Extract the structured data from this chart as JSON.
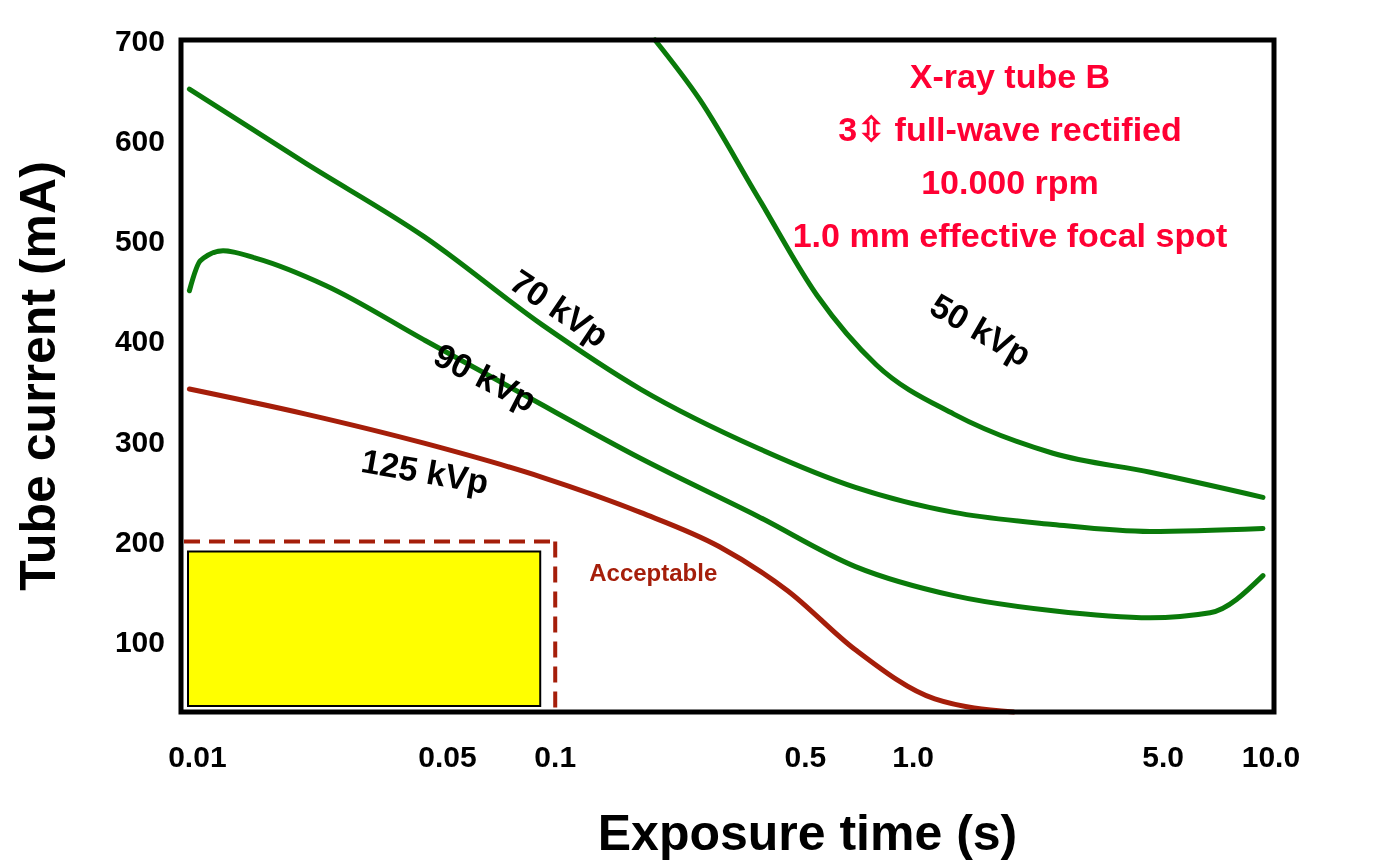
{
  "chart_data": {
    "type": "line",
    "xlabel": "Exposure time (s)",
    "ylabel": "Tube current (mA)",
    "log": "x",
    "xlim": [
      0.009,
      10.2
    ],
    "ylim": [
      30,
      700
    ],
    "xticks": [
      0.01,
      0.05,
      0.1,
      0.5,
      {
        "value": 1,
        "label": "1.0"
      },
      {
        "value": 5,
        "label": "5.0"
      },
      {
        "value": 10,
        "label": "10.0"
      }
    ],
    "yticks": [
      100,
      200,
      300,
      400,
      500,
      600,
      700
    ],
    "grid": false,
    "marker": "none",
    "line_style": "solid",
    "ref_lines": [
      {
        "axis": "x",
        "value": 0.1,
        "color": "#a51e0a",
        "line_style": "dashed"
      },
      {
        "axis": "y",
        "value": 200,
        "color": "#a51e0a",
        "line_style": "dashed"
      }
    ],
    "series": [
      {
        "name": "50 kVp",
        "color": "#0a7a0a",
        "x": [
          0.19,
          0.253,
          0.369,
          0.54,
          0.79,
          1.3,
          2.46,
          4.6,
          9.5
        ],
        "values": [
          700,
          641,
          543,
          445,
          376,
          327,
          288,
          269,
          244
        ]
      },
      {
        "name": "70 kVp",
        "color": "#0a7a0a",
        "x": [
          0.0095,
          0.0201,
          0.043,
          0.092,
          0.173,
          0.369,
          0.69,
          1.3,
          2.46,
          4.6,
          9.5
        ],
        "values": [
          651,
          577,
          504,
          416,
          352,
          293,
          254,
          229,
          217,
          210,
          213
        ]
      },
      {
        "name": "90 kVp",
        "color": "#0a7a0a",
        "x": [
          0.0095,
          0.0102,
          0.0118,
          0.0147,
          0.0229,
          0.043,
          0.081,
          0.173,
          0.369,
          0.69,
          1.3,
          2.46,
          4.6,
          6.76,
          9.5
        ],
        "values": [
          450,
          480,
          490,
          482,
          455,
          401,
          347,
          283,
          225,
          175,
          146,
          131,
          124,
          129,
          166
        ]
      },
      {
        "name": "125 kVp",
        "color": "#a51e0a",
        "x": [
          0.0095,
          0.0201,
          0.043,
          0.092,
          0.173,
          0.287,
          0.446,
          0.69,
          1.15,
          1.91
        ],
        "values": [
          352,
          327,
          298,
          264,
          229,
          195,
          151,
          92,
          43,
          30
        ]
      }
    ],
    "annotations": [
      "X-ray tube B",
      "3⇳ full-wave rectified",
      "10.000 rpm",
      "1.0 mm effective focal spot",
      "Acceptable"
    ]
  }
}
